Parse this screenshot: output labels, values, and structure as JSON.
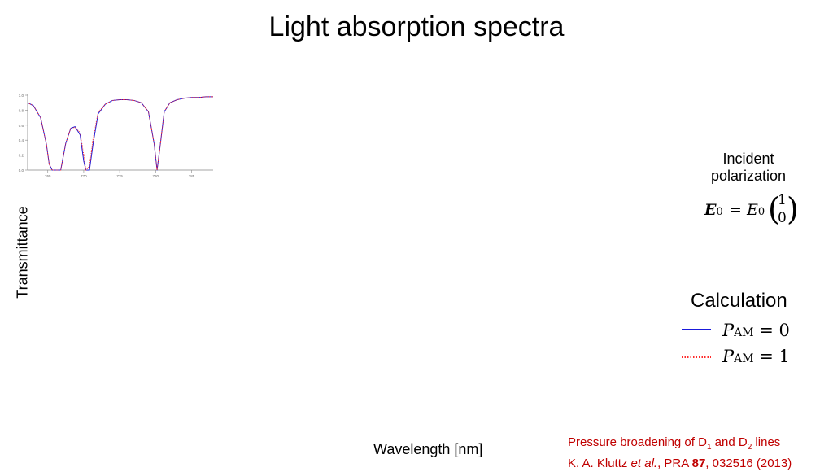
{
  "title": "Light absorption spectra",
  "ylabel": "Transmittance",
  "xlabel": "Wavelength  [nm]",
  "incident": {
    "line1": "Incident",
    "line2": "polarization",
    "formula_lhs": "E",
    "formula_lhs_sub": "0",
    "formula_eq": "=",
    "formula_rhs": "E",
    "formula_rhs_sub": "0",
    "vector_top": "1",
    "vector_bottom": "0"
  },
  "legend": {
    "title": "Calculation",
    "items": [
      {
        "symbol": "P",
        "sub": "AM",
        "rest": " = 0",
        "color": "#1a1adb",
        "style": "solid"
      },
      {
        "symbol": "P",
        "sub": "AM",
        "rest": " = 1",
        "color": "#ff2a2a",
        "style": "dotted"
      }
    ]
  },
  "reference": {
    "line1_a": "Pressure broadening of D",
    "line1_sub1": "1",
    "line1_b": " and D",
    "line1_sub2": "2",
    "line1_c": " lines",
    "line2_a": "K. A. Kluttz ",
    "line2_etal": "et al.",
    "line2_b": ", PRA ",
    "line2_vol": "87",
    "line2_c": ", 032516 (2013)"
  },
  "chart_data": {
    "type": "line",
    "xlim": [
      762.2,
      788
    ],
    "ylim": [
      0,
      1.0
    ],
    "xticks": [
      765,
      770,
      775,
      780,
      785
    ],
    "yticks": [
      0.0,
      0.2,
      0.4,
      0.6,
      0.8,
      1.0
    ],
    "grid": false,
    "series": [
      {
        "color": "#1a1adb",
        "style": "solid",
        "x": [
          762.2,
          763,
          764,
          764.8,
          765.2,
          765.6,
          766.2,
          766.8,
          767.5,
          768.2,
          768.8,
          769.5,
          770,
          770.3,
          770.8,
          771.3,
          772,
          773,
          774,
          775,
          776,
          777,
          778,
          779,
          779.8,
          780.2,
          780.6,
          781.2,
          782,
          783,
          784,
          785,
          786,
          787,
          788
        ],
        "y": [
          0.9,
          0.86,
          0.7,
          0.35,
          0.08,
          0.0,
          0.0,
          0.0,
          0.36,
          0.56,
          0.58,
          0.47,
          0.12,
          0.0,
          0.0,
          0.35,
          0.75,
          0.88,
          0.93,
          0.94,
          0.94,
          0.93,
          0.9,
          0.78,
          0.35,
          0.0,
          0.3,
          0.78,
          0.9,
          0.94,
          0.96,
          0.97,
          0.97,
          0.98,
          0.98
        ]
      },
      {
        "color": "#ff2a2a",
        "style": "dotted",
        "x": [
          762.2,
          763,
          764,
          764.8,
          765.2,
          765.6,
          766.2,
          766.8,
          767.5,
          768.2,
          768.8,
          769.5,
          770,
          770.3,
          770.8,
          771.3,
          772,
          773,
          774,
          775,
          776,
          777,
          778,
          779,
          779.8,
          780.2,
          780.6,
          781.2,
          782,
          783,
          784,
          785,
          786,
          787,
          788
        ],
        "y": [
          0.9,
          0.86,
          0.7,
          0.35,
          0.08,
          0.0,
          0.0,
          0.0,
          0.36,
          0.56,
          0.57,
          0.5,
          0.2,
          0.0,
          0.05,
          0.42,
          0.77,
          0.88,
          0.93,
          0.94,
          0.94,
          0.93,
          0.9,
          0.78,
          0.35,
          0.0,
          0.3,
          0.78,
          0.9,
          0.94,
          0.96,
          0.97,
          0.97,
          0.98,
          0.98
        ]
      }
    ]
  }
}
